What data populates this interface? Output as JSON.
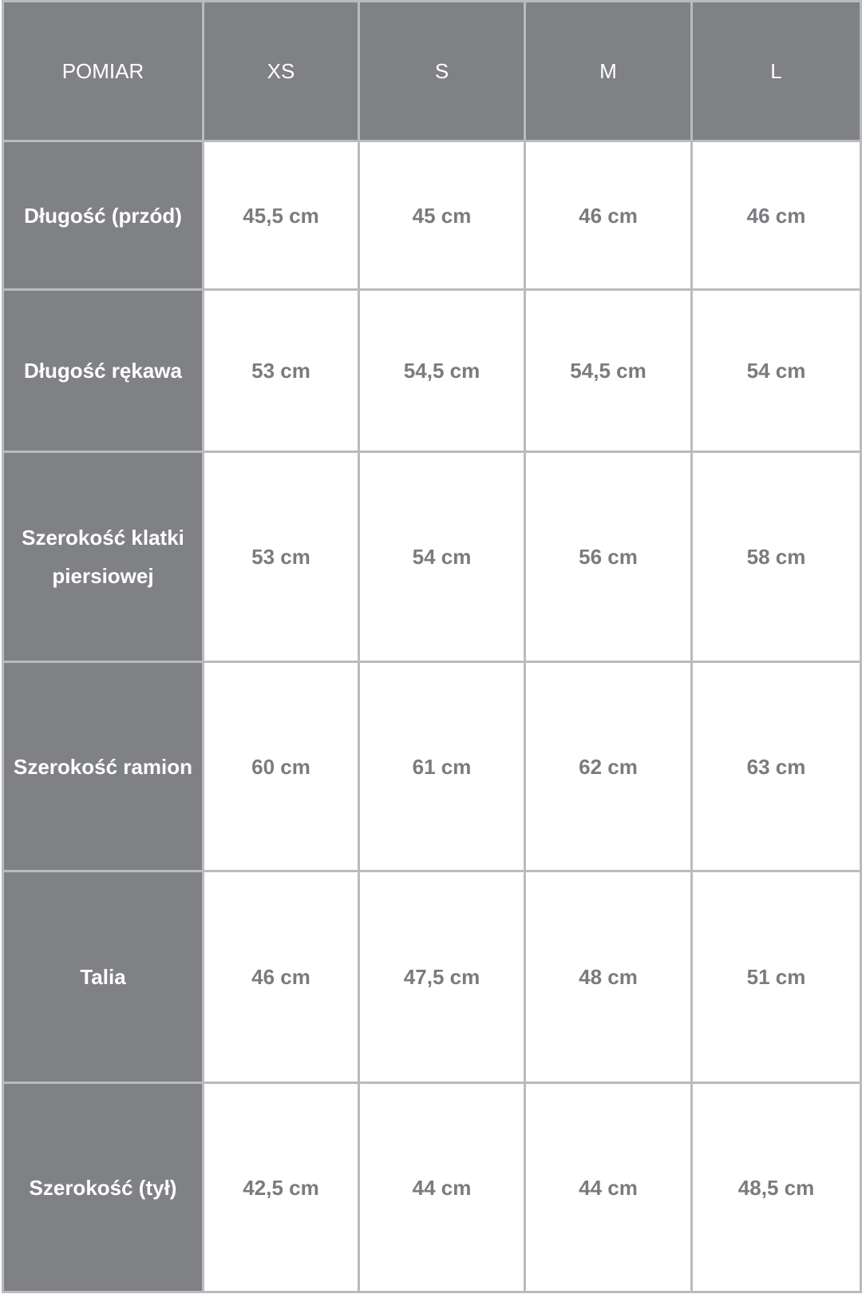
{
  "table": {
    "headers": [
      "POMIAR",
      "XS",
      "S",
      "M",
      "L"
    ],
    "rows": [
      {
        "label": "Długość (przód)",
        "values": [
          "45,5 cm",
          "45 cm",
          "46 cm",
          "46 cm"
        ]
      },
      {
        "label": "Długość rękawa",
        "values": [
          "53 cm",
          "54,5 cm",
          "54,5 cm",
          "54 cm"
        ]
      },
      {
        "label": "Szerokość klatki piersiowej",
        "values": [
          "53 cm",
          "54 cm",
          "56 cm",
          "58 cm"
        ]
      },
      {
        "label": "Szerokość ramion",
        "values": [
          "60 cm",
          "61 cm",
          "62 cm",
          "63 cm"
        ]
      },
      {
        "label": "Talia",
        "values": [
          "46 cm",
          "47,5 cm",
          "48 cm",
          "51 cm"
        ]
      },
      {
        "label": "Szerokość (tył)",
        "values": [
          "42,5 cm",
          "44 cm",
          "44 cm",
          "48,5 cm"
        ]
      }
    ]
  },
  "colors": {
    "header_bg": "#808185",
    "border": "#babbbf",
    "cell_text": "#7b7b7f"
  }
}
